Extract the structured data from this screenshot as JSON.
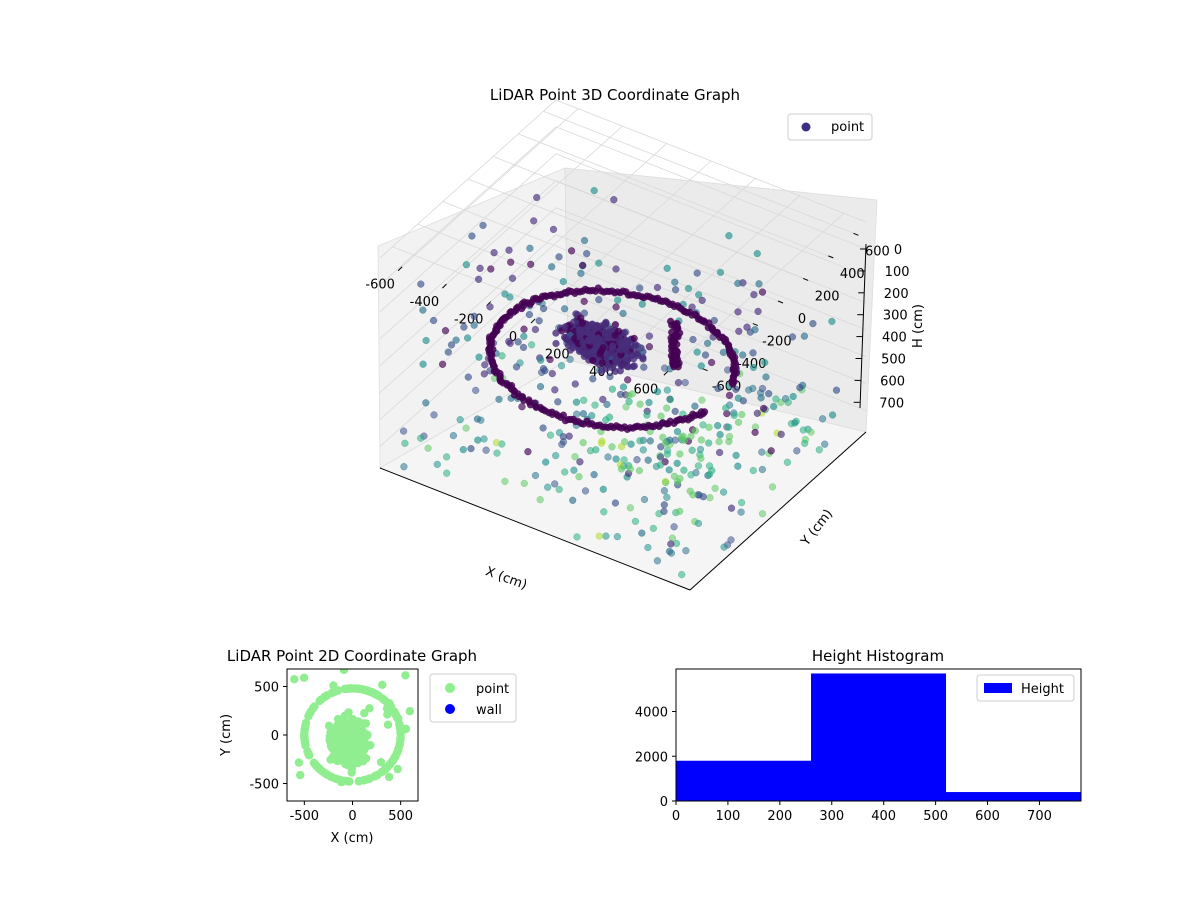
{
  "chart_data": [
    {
      "type": "scatter",
      "projection": "3d",
      "title": "LiDAR Point 3D Coordinate Graph",
      "xlabel": "X (cm)",
      "ylabel": "Y (cm)",
      "zlabel": "H (cm)",
      "xlim": [
        -700,
        700
      ],
      "ylim": [
        -700,
        700
      ],
      "zlim": [
        0,
        780
      ],
      "zaxis_inverted": true,
      "xticks": [
        "-600",
        "-400",
        "-200",
        "0",
        "200",
        "400",
        "600"
      ],
      "yticks": [
        "-600",
        "-400",
        "-200",
        "0",
        "200",
        "400",
        "600"
      ],
      "zticks": [
        "0",
        "100",
        "200",
        "300",
        "400",
        "500",
        "600",
        "700"
      ],
      "colormap": "viridis",
      "legend": {
        "position": "top-right",
        "entries": [
          "point"
        ]
      },
      "series": [
        {
          "name": "point",
          "color": "#3b2f80",
          "description_points": {
            "ring": {
              "radius": 480,
              "h": 470,
              "count": 140
            },
            "dense_cluster": {
              "x": [
                -350,
                150
              ],
              "y": [
                -150,
                150
              ],
              "h": [
                350,
                500
              ]
            },
            "vertical_spike": {
              "x": 120,
              "y": 200,
              "h": [
                350,
                520
              ]
            },
            "ceiling_grid": {
              "h": 750
            }
          }
        }
      ],
      "grid": true
    },
    {
      "type": "scatter",
      "title": "LiDAR Point 2D Coordinate Graph",
      "xlabel": "X (cm)",
      "ylabel": "Y (cm)",
      "xlim": [
        -680,
        680
      ],
      "ylim": [
        -680,
        680
      ],
      "xticks": [
        "-500",
        "0",
        "500"
      ],
      "yticks": [
        "500",
        "0",
        "-500"
      ],
      "legend": {
        "position": "outside-right",
        "entries": [
          "point",
          "wall"
        ]
      },
      "series": [
        {
          "name": "point",
          "color": "#90ee90"
        },
        {
          "name": "wall",
          "color": "#0000ff"
        }
      ]
    },
    {
      "type": "bar",
      "title": "Height Histogram",
      "xticks": [
        "0",
        "100",
        "200",
        "300",
        "400",
        "500",
        "600",
        "700"
      ],
      "yticks": [
        "0",
        "2000",
        "4000"
      ],
      "xlim": [
        0,
        780
      ],
      "ylim": [
        0,
        5900
      ],
      "bins": [
        {
          "from": 0,
          "to": 260,
          "count": 1800
        },
        {
          "from": 260,
          "to": 520,
          "count": 5700
        },
        {
          "from": 520,
          "to": 780,
          "count": 400
        }
      ],
      "legend": {
        "position": "top-right",
        "entries": [
          "Height"
        ]
      },
      "series": [
        {
          "name": "Height",
          "color": "#0000ff"
        }
      ]
    }
  ]
}
